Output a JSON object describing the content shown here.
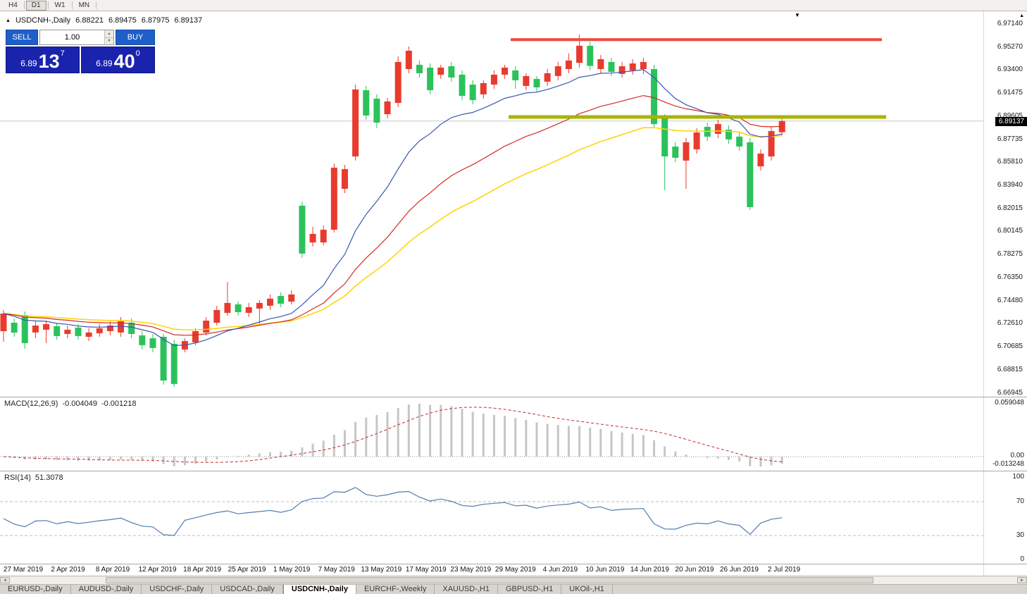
{
  "toolbar": {
    "timeframes": [
      {
        "label": "H4",
        "active": false
      },
      {
        "label": "D1",
        "active": true
      },
      {
        "label": "W1",
        "active": false
      },
      {
        "label": "MN",
        "active": false
      }
    ]
  },
  "icons": {
    "panel_toggle": "▲",
    "shift_marker": "▼",
    "scale_arrow": "▲",
    "spinner_up": "▲",
    "spinner_down": "▼",
    "scroll_left": "◄",
    "scroll_right": "►"
  },
  "chart": {
    "header": {
      "symbol": "USDCNH-,Daily",
      "open": "6.88221",
      "high": "6.89475",
      "low": "6.87975",
      "close": "6.89137"
    }
  },
  "trade_panel": {
    "sell_label": "SELL",
    "buy_label": "BUY",
    "volume": "1.00",
    "sell_price_main": "6.89",
    "sell_price_big": "13",
    "sell_price_sup": "7",
    "buy_price_main": "6.89",
    "buy_price_big": "40",
    "buy_price_sup": "0"
  },
  "price_scale": {
    "labels": [
      "6.97140",
      "6.95270",
      "6.93400",
      "6.91475",
      "6.89605",
      "6.87735",
      "6.85810",
      "6.83940",
      "6.82015",
      "6.80145",
      "6.78275",
      "6.76350",
      "6.74480",
      "6.72610",
      "6.70685",
      "6.68815",
      "6.66945"
    ],
    "current": "6.89137"
  },
  "macd_panel": {
    "name": "MACD(12,26,9)",
    "macd_value": "-0.004049",
    "signal_value": "-0.001218",
    "scale_max": "0.059048",
    "scale_zero": "0.00",
    "scale_min": "-0.013248"
  },
  "rsi_panel": {
    "name": "RSI(14)",
    "value": "51.3078",
    "scale": {
      "top": "100",
      "upper": "70",
      "lower": "30",
      "bottom": "0"
    }
  },
  "x_axis": {
    "dates": [
      "27 Mar 2019",
      "2 Apr 2019",
      "8 Apr 2019",
      "12 Apr 2019",
      "18 Apr 2019",
      "25 Apr 2019",
      "1 May 2019",
      "7 May 2019",
      "13 May 2019",
      "17 May 2019",
      "23 May 2019",
      "29 May 2019",
      "4 Jun 2019",
      "10 Jun 2019",
      "14 Jun 2019",
      "20 Jun 2019",
      "26 Jun 2019",
      "2 Jul 2019"
    ]
  },
  "tabs": [
    {
      "label": "EURUSD-,Daily",
      "active": false
    },
    {
      "label": "AUDUSD-,Daily",
      "active": false
    },
    {
      "label": "USDCHF-,Daily",
      "active": false
    },
    {
      "label": "USDCAD-,Daily",
      "active": false
    },
    {
      "label": "USDCNH-,Daily",
      "active": true
    },
    {
      "label": "EURCHF-,Weekly",
      "active": false
    },
    {
      "label": "XAUUSD-,H1",
      "active": false
    },
    {
      "label": "GBPUSD-,H1",
      "active": false
    },
    {
      "label": "UKOil-,H1",
      "active": false
    }
  ],
  "chart_data": {
    "type": "candlestick",
    "symbol": "USDCNH-",
    "timeframe": "Daily",
    "price_axis_min": 6.66945,
    "price_axis_max": 6.9714,
    "current_price": 6.89137,
    "up_color": "#e83b2d",
    "down_color": "#2bc25c",
    "ohlc": [
      [
        6.7194,
        6.7367,
        6.7108,
        6.7338
      ],
      [
        6.7263,
        6.7298,
        6.7148,
        6.7182
      ],
      [
        6.7326,
        6.7355,
        6.705,
        6.7096
      ],
      [
        6.7183,
        6.728,
        6.7136,
        6.724
      ],
      [
        6.7206,
        6.728,
        6.7096,
        6.7252
      ],
      [
        6.7235,
        6.7263,
        6.7125,
        6.7154
      ],
      [
        6.7171,
        6.724,
        6.7136,
        6.7206
      ],
      [
        6.7223,
        6.7252,
        6.7125,
        6.7154
      ],
      [
        6.7148,
        6.7217,
        6.7113,
        6.7183
      ],
      [
        6.7177,
        6.7252,
        6.7148,
        6.7217
      ],
      [
        6.7194,
        6.7275,
        6.7159,
        6.724
      ],
      [
        6.7183,
        6.7309,
        6.7148,
        6.7275
      ],
      [
        6.7263,
        6.7298,
        6.7136,
        6.7171
      ],
      [
        6.7159,
        6.7194,
        6.7044,
        6.7079
      ],
      [
        6.7136,
        6.7171,
        6.7021,
        6.7056
      ],
      [
        6.7148,
        6.7171,
        6.6756,
        6.679
      ],
      [
        6.709,
        6.7125,
        6.674,
        6.6762
      ],
      [
        6.7044,
        6.7136,
        6.7021,
        6.7113
      ],
      [
        6.7102,
        6.7217,
        6.7079,
        6.7194
      ],
      [
        6.7183,
        6.7309,
        6.7159,
        6.728
      ],
      [
        6.7263,
        6.7402,
        6.724,
        6.7367
      ],
      [
        6.7344,
        6.7598,
        6.7321,
        6.7425
      ],
      [
        6.7413,
        6.7436,
        6.7321,
        6.735
      ],
      [
        6.7344,
        6.7425,
        6.7309,
        6.739
      ],
      [
        6.7379,
        6.7448,
        6.7252,
        6.7425
      ],
      [
        6.7402,
        6.7494,
        6.7367,
        6.746
      ],
      [
        6.7482,
        6.7511,
        6.739,
        6.7419
      ],
      [
        6.7436,
        6.7528,
        6.7413,
        6.7494
      ],
      [
        6.8221,
        6.8255,
        6.7794,
        6.7829
      ],
      [
        6.792,
        6.8048,
        6.7886,
        6.799
      ],
      [
        6.792,
        6.8059,
        6.7897,
        6.8024
      ],
      [
        6.8024,
        6.8566,
        6.8001,
        6.8532
      ],
      [
        6.8359,
        6.8555,
        6.8324,
        6.852
      ],
      [
        6.8624,
        6.9212,
        6.859,
        6.9172
      ],
      [
        6.9166,
        6.9201,
        6.8924,
        6.8959
      ],
      [
        6.9097,
        6.9132,
        6.8855,
        6.8901
      ],
      [
        6.897,
        6.9103,
        6.8936,
        6.9074
      ],
      [
        6.9062,
        6.9443,
        6.9028,
        6.9397
      ],
      [
        6.9339,
        6.9524,
        6.9305,
        6.9489
      ],
      [
        6.9374,
        6.9409,
        6.927,
        6.9305
      ],
      [
        6.9351,
        6.9386,
        6.9132,
        6.9166
      ],
      [
        6.9293,
        6.9374,
        6.9258,
        6.9351
      ],
      [
        6.9362,
        6.9397,
        6.9236,
        6.927
      ],
      [
        6.9293,
        6.9328,
        6.9085,
        6.912
      ],
      [
        6.9212,
        6.9247,
        6.9051,
        6.9085
      ],
      [
        6.9132,
        6.9247,
        6.9097,
        6.9224
      ],
      [
        6.9212,
        6.9328,
        6.9178,
        6.9293
      ],
      [
        6.9293,
        6.9374,
        6.9258,
        6.9351
      ],
      [
        6.9328,
        6.9362,
        6.9178,
        6.9247
      ],
      [
        6.9201,
        6.9305,
        6.9166,
        6.9282
      ],
      [
        6.9258,
        6.9282,
        6.9155,
        6.9189
      ],
      [
        6.9236,
        6.934,
        6.9201,
        6.9305
      ],
      [
        6.9282,
        6.9397,
        6.9247,
        6.9362
      ],
      [
        6.9339,
        6.9466,
        6.9305,
        6.9409
      ],
      [
        6.939,
        6.962,
        6.935,
        6.953
      ],
      [
        6.953,
        6.9565,
        6.933,
        6.9365
      ],
      [
        6.9339,
        6.9454,
        6.9299,
        6.942
      ],
      [
        6.9397,
        6.9431,
        6.9282,
        6.9316
      ],
      [
        6.9299,
        6.9397,
        6.927,
        6.9362
      ],
      [
        6.9328,
        6.942,
        6.9293,
        6.9385
      ],
      [
        6.9339,
        6.9431,
        6.9299,
        6.9397
      ],
      [
        6.9339,
        6.9374,
        6.8866,
        6.8889
      ],
      [
        6.8936,
        6.897,
        6.8347,
        6.8624
      ],
      [
        6.8705,
        6.874,
        6.8578,
        6.8613
      ],
      [
        6.859,
        6.8774,
        6.8359,
        6.874
      ],
      [
        6.8682,
        6.8855,
        6.8647,
        6.882
      ],
      [
        6.8866,
        6.8901,
        6.8751,
        6.8786
      ],
      [
        6.8809,
        6.8924,
        6.8774,
        6.8889
      ],
      [
        6.8843,
        6.8878,
        6.8728,
        6.8763
      ],
      [
        6.8786,
        6.882,
        6.867,
        6.8705
      ],
      [
        6.874,
        6.8774,
        6.8186,
        6.8209
      ],
      [
        6.8543,
        6.8682,
        6.8509,
        6.8647
      ],
      [
        6.8624,
        6.8866,
        6.859,
        6.8832
      ],
      [
        6.88221,
        6.89475,
        6.87975,
        6.89137
      ]
    ],
    "moving_averages": [
      {
        "type": "ema",
        "period": 13,
        "color": "#3a56b0"
      },
      {
        "type": "ema",
        "period": 26,
        "color": "#d42a20"
      },
      {
        "type": "ema",
        "period": 40,
        "color": "#ffd400"
      }
    ],
    "horizontal_lines": [
      {
        "price": 6.958,
        "color": "#f0483e",
        "thickness": 4
      },
      {
        "price": 6.8947,
        "color": "#a9b400",
        "thickness": 5
      }
    ],
    "macd": {
      "fast": 12,
      "slow": 26,
      "signal": 9,
      "last_macd": -0.004049,
      "last_signal": -0.001218,
      "histogram_color": "#c6c6c6",
      "signal_color": "#c62828"
    },
    "rsi": {
      "period": 14,
      "last_value": 51.3078,
      "color": "#4f7db0",
      "levels": [
        70,
        30
      ]
    }
  }
}
